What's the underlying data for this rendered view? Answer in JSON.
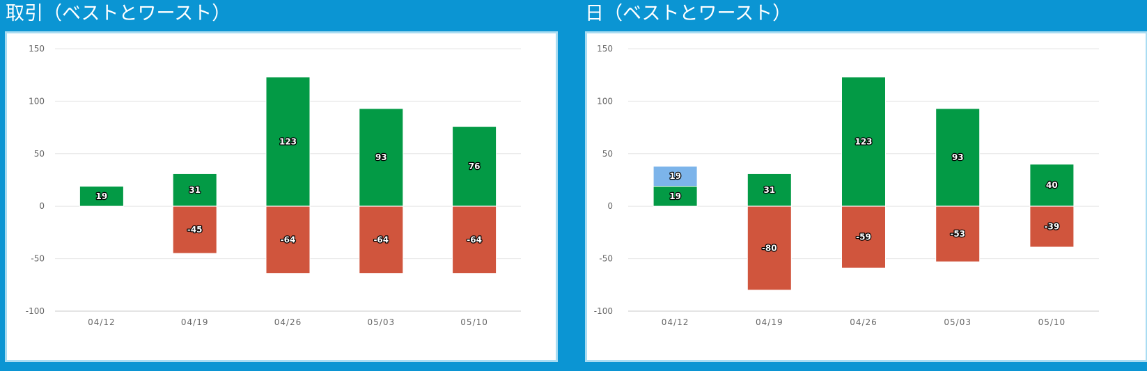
{
  "colors": {
    "background": "#0b95d3",
    "frame": "#a9dcf2",
    "best": "#039a45",
    "worst": "#d0553d",
    "extra": "#7cb4ea",
    "grid": "#e6e6e6"
  },
  "chart_data": [
    {
      "type": "bar",
      "title": "取引（ベストとワースト）",
      "categories": [
        "04/12",
        "04/19",
        "04/26",
        "05/03",
        "05/10"
      ],
      "ylim": [
        -100,
        150
      ],
      "yticks": [
        150,
        100,
        50,
        0,
        -50,
        -100
      ],
      "grid": true,
      "stacked": true,
      "series": [
        {
          "color": "#039a45",
          "values": [
            19,
            31,
            123,
            93,
            76
          ]
        },
        {
          "color": "#d0553d",
          "values": [
            null,
            -45,
            -64,
            -64,
            -64
          ]
        }
      ]
    },
    {
      "type": "bar",
      "title": "日（ベストとワースト）",
      "categories": [
        "04/12",
        "04/19",
        "04/26",
        "05/03",
        "05/10"
      ],
      "ylim": [
        -100,
        150
      ],
      "yticks": [
        150,
        100,
        50,
        0,
        -50,
        -100
      ],
      "grid": true,
      "stacked": true,
      "series": [
        {
          "color": "#039a45",
          "values": [
            19,
            31,
            123,
            93,
            40
          ]
        },
        {
          "color": "#7cb4ea",
          "values": [
            19,
            null,
            null,
            null,
            null
          ]
        },
        {
          "color": "#d0553d",
          "values": [
            null,
            -80,
            -59,
            -53,
            -39
          ]
        }
      ]
    }
  ]
}
